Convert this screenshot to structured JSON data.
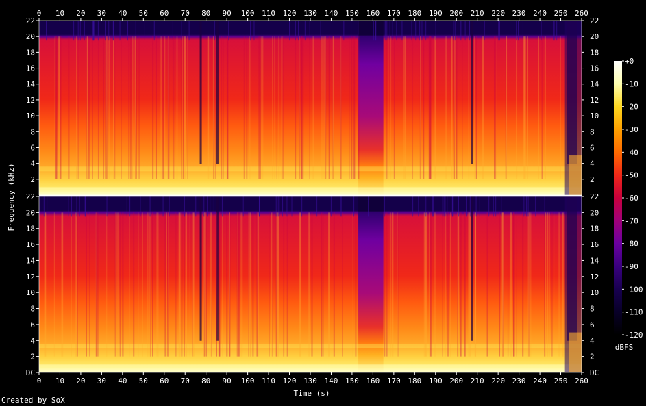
{
  "chart_data": {
    "type": "heatmap",
    "title": "",
    "xlabel": "Time (s)",
    "ylabel": "Frequency (kHz)",
    "colorbar_label": "dBFS",
    "xlim": [
      0,
      260
    ],
    "ylim": [
      0,
      22
    ],
    "x_ticks": [
      0,
      10,
      20,
      30,
      40,
      50,
      60,
      70,
      80,
      90,
      100,
      110,
      120,
      130,
      140,
      150,
      160,
      170,
      180,
      190,
      200,
      210,
      220,
      230,
      240,
      250,
      260
    ],
    "x_tick_labels": [
      "0",
      "10",
      "20",
      "30",
      "40",
      "50",
      "60",
      "70",
      "80",
      "90",
      "100",
      "110",
      "120",
      "130",
      "140",
      "150",
      "160",
      "170",
      "180",
      "190",
      "200",
      "210",
      "220",
      "230",
      "240",
      "250",
      "260"
    ],
    "y_ticks_top": [
      2,
      4,
      6,
      8,
      10,
      12,
      14,
      16,
      18,
      20,
      22
    ],
    "y_tick_labels_top": [
      "2",
      "4",
      "6",
      "8",
      "10",
      "12",
      "14",
      "16",
      "18",
      "20",
      "22"
    ],
    "y_ticks_bottom": [
      0,
      2,
      4,
      6,
      8,
      10,
      12,
      14,
      16,
      18,
      20,
      22
    ],
    "y_tick_labels_bottom": [
      "DC",
      "2",
      "4",
      "6",
      "8",
      "10",
      "12",
      "14",
      "16",
      "18",
      "20",
      "22"
    ],
    "colorbar_ticks": [
      0,
      -10,
      -20,
      -30,
      -40,
      -50,
      -60,
      -70,
      -80,
      -90,
      -100,
      -110,
      -120
    ],
    "colorbar_tick_labels": [
      "+0",
      "-10",
      "-20",
      "-30",
      "-40",
      "-50",
      "-60",
      "-70",
      "-80",
      "-90",
      "-100",
      "-110",
      "-120"
    ],
    "channels": 2,
    "colormap": [
      "#000000",
      "#1a0050",
      "#4a0090",
      "#8a0088",
      "#c8003c",
      "#f01010",
      "#ff5a00",
      "#ffa000",
      "#ffd820",
      "#ffffb0",
      "#ffffff"
    ],
    "quiet_segments_s": [
      [
        153,
        165
      ]
    ],
    "drop_outs_s": [
      [
        77,
        78
      ],
      [
        85,
        86
      ],
      [
        207,
        208
      ],
      [
        253,
        258
      ]
    ]
  },
  "credit": "Created by SoX"
}
